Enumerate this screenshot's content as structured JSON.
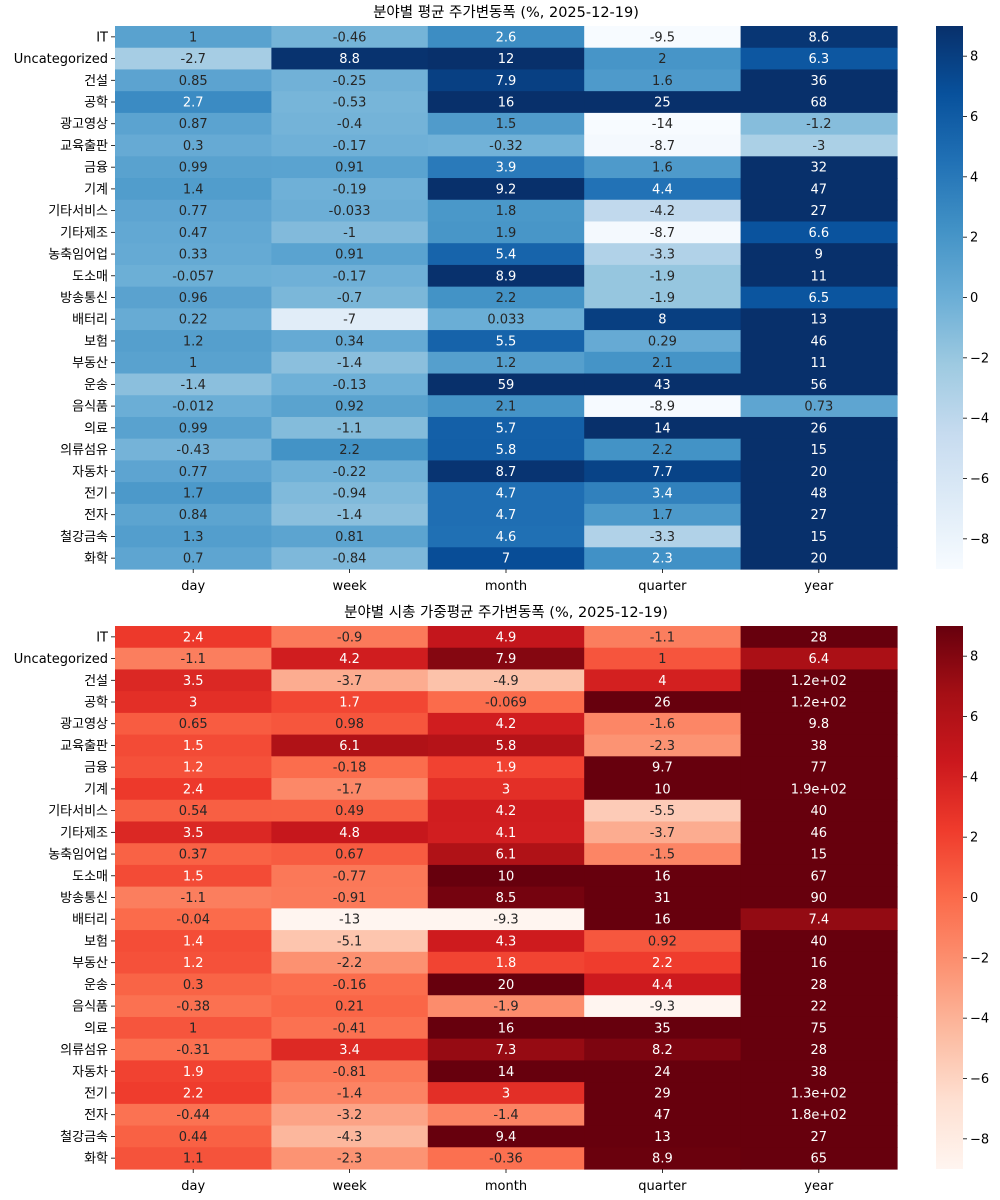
{
  "chart_data": [
    {
      "type": "heatmap",
      "title": "분야별 평균 주가변동폭 (%, 2025-12-19)",
      "colormap": "Blues",
      "vmin": -9,
      "vmax": 9,
      "colorbar_ticks": [
        8,
        6,
        4,
        2,
        0,
        -2,
        -4,
        -6,
        -8
      ],
      "colorbar_tick_labels": [
        "8",
        "6",
        "4",
        "2",
        "0",
        "−2",
        "−4",
        "−6",
        "−8"
      ],
      "columns": [
        "day",
        "week",
        "month",
        "quarter",
        "year"
      ],
      "rows": [
        "IT",
        "Uncategorized",
        "건설",
        "공학",
        "광고영상",
        "교육출판",
        "금융",
        "기계",
        "기타서비스",
        "기타제조",
        "농축임어업",
        "도소매",
        "방송통신",
        "배터리",
        "보험",
        "부동산",
        "운송",
        "음식품",
        "의료",
        "의류섬유",
        "자동차",
        "전기",
        "전자",
        "철강금속",
        "화학"
      ],
      "values": [
        [
          1,
          -0.46,
          2.6,
          -9.5,
          8.6
        ],
        [
          -2.7,
          8.8,
          12,
          2,
          6.3
        ],
        [
          0.85,
          -0.25,
          7.9,
          1.6,
          36
        ],
        [
          2.7,
          -0.53,
          16,
          25,
          68
        ],
        [
          0.87,
          -0.4,
          1.5,
          -14,
          -1.2
        ],
        [
          0.3,
          -0.17,
          -0.32,
          -8.7,
          -3
        ],
        [
          0.99,
          0.91,
          3.9,
          1.6,
          32
        ],
        [
          1.4,
          -0.19,
          9.2,
          4.4,
          47
        ],
        [
          0.77,
          -0.033,
          1.8,
          -4.2,
          27
        ],
        [
          0.47,
          -1,
          1.9,
          -8.7,
          6.6
        ],
        [
          0.33,
          0.91,
          5.4,
          -3.3,
          9
        ],
        [
          -0.057,
          -0.17,
          8.9,
          -1.9,
          11
        ],
        [
          0.96,
          -0.7,
          2.2,
          -1.9,
          6.5
        ],
        [
          0.22,
          -7,
          0.033,
          8,
          13
        ],
        [
          1.2,
          0.34,
          5.5,
          0.29,
          46
        ],
        [
          1,
          -1.4,
          1.2,
          2.1,
          11
        ],
        [
          -1.4,
          -0.13,
          59,
          43,
          56
        ],
        [
          -0.012,
          0.92,
          2.1,
          -8.9,
          0.73
        ],
        [
          0.99,
          -1.1,
          5.7,
          14,
          26
        ],
        [
          -0.43,
          2.2,
          5.8,
          2.2,
          15
        ],
        [
          0.77,
          -0.22,
          8.7,
          7.7,
          20
        ],
        [
          1.7,
          -0.94,
          4.7,
          3.4,
          48
        ],
        [
          0.84,
          -1.4,
          4.7,
          1.7,
          27
        ],
        [
          1.3,
          0.81,
          4.6,
          -3.3,
          15
        ],
        [
          0.7,
          -0.84,
          7,
          2.3,
          20
        ]
      ],
      "labels": [
        [
          "1",
          "-0.46",
          "2.6",
          "-9.5",
          "8.6"
        ],
        [
          "-2.7",
          "8.8",
          "12",
          "2",
          "6.3"
        ],
        [
          "0.85",
          "-0.25",
          "7.9",
          "1.6",
          "36"
        ],
        [
          "2.7",
          "-0.53",
          "16",
          "25",
          "68"
        ],
        [
          "0.87",
          "-0.4",
          "1.5",
          "-14",
          "-1.2"
        ],
        [
          "0.3",
          "-0.17",
          "-0.32",
          "-8.7",
          "-3"
        ],
        [
          "0.99",
          "0.91",
          "3.9",
          "1.6",
          "32"
        ],
        [
          "1.4",
          "-0.19",
          "9.2",
          "4.4",
          "47"
        ],
        [
          "0.77",
          "-0.033",
          "1.8",
          "-4.2",
          "27"
        ],
        [
          "0.47",
          "-1",
          "1.9",
          "-8.7",
          "6.6"
        ],
        [
          "0.33",
          "0.91",
          "5.4",
          "-3.3",
          "9"
        ],
        [
          "-0.057",
          "-0.17",
          "8.9",
          "-1.9",
          "11"
        ],
        [
          "0.96",
          "-0.7",
          "2.2",
          "-1.9",
          "6.5"
        ],
        [
          "0.22",
          "-7",
          "0.033",
          "8",
          "13"
        ],
        [
          "1.2",
          "0.34",
          "5.5",
          "0.29",
          "46"
        ],
        [
          "1",
          "-1.4",
          "1.2",
          "2.1",
          "11"
        ],
        [
          "-1.4",
          "-0.13",
          "59",
          "43",
          "56"
        ],
        [
          "-0.012",
          "0.92",
          "2.1",
          "-8.9",
          "0.73"
        ],
        [
          "0.99",
          "-1.1",
          "5.7",
          "14",
          "26"
        ],
        [
          "-0.43",
          "2.2",
          "5.8",
          "2.2",
          "15"
        ],
        [
          "0.77",
          "-0.22",
          "8.7",
          "7.7",
          "20"
        ],
        [
          "1.7",
          "-0.94",
          "4.7",
          "3.4",
          "48"
        ],
        [
          "0.84",
          "-1.4",
          "4.7",
          "1.7",
          "27"
        ],
        [
          "1.3",
          "0.81",
          "4.6",
          "-3.3",
          "15"
        ],
        [
          "0.7",
          "-0.84",
          "7",
          "2.3",
          "20"
        ]
      ]
    },
    {
      "type": "heatmap",
      "title": "분야별 시총 가중평균 주가변동폭 (%, 2025-12-19)",
      "colormap": "Reds",
      "vmin": -9,
      "vmax": 9,
      "colorbar_ticks": [
        8,
        6,
        4,
        2,
        0,
        -2,
        -4,
        -6,
        -8
      ],
      "colorbar_tick_labels": [
        "8",
        "6",
        "4",
        "2",
        "0",
        "−2",
        "−4",
        "−6",
        "−8"
      ],
      "columns": [
        "day",
        "week",
        "month",
        "quarter",
        "year"
      ],
      "rows": [
        "IT",
        "Uncategorized",
        "건설",
        "공학",
        "광고영상",
        "교육출판",
        "금융",
        "기계",
        "기타서비스",
        "기타제조",
        "농축임어업",
        "도소매",
        "방송통신",
        "배터리",
        "보험",
        "부동산",
        "운송",
        "음식품",
        "의료",
        "의류섬유",
        "자동차",
        "전기",
        "전자",
        "철강금속",
        "화학"
      ],
      "values": [
        [
          2.4,
          -0.9,
          4.9,
          -1.1,
          28
        ],
        [
          -1.1,
          4.2,
          7.9,
          1,
          6.4
        ],
        [
          3.5,
          -3.7,
          -4.9,
          4,
          120
        ],
        [
          3,
          1.7,
          -0.069,
          26,
          120
        ],
        [
          0.65,
          0.98,
          4.2,
          -1.6,
          9.8
        ],
        [
          1.5,
          6.1,
          5.8,
          -2.3,
          38
        ],
        [
          1.2,
          -0.18,
          1.9,
          9.7,
          77
        ],
        [
          2.4,
          -1.7,
          3,
          10,
          190
        ],
        [
          0.54,
          0.49,
          4.2,
          -5.5,
          40
        ],
        [
          3.5,
          4.8,
          4.1,
          -3.7,
          46
        ],
        [
          0.37,
          0.67,
          6.1,
          -1.5,
          15
        ],
        [
          1.5,
          -0.77,
          10,
          16,
          67
        ],
        [
          -1.1,
          -0.91,
          8.5,
          31,
          90
        ],
        [
          -0.04,
          -13,
          -9.3,
          16,
          7.4
        ],
        [
          1.4,
          -5.1,
          4.3,
          0.92,
          40
        ],
        [
          1.2,
          -2.2,
          1.8,
          2.2,
          16
        ],
        [
          0.3,
          -0.16,
          20,
          4.4,
          28
        ],
        [
          -0.38,
          0.21,
          -1.9,
          -9.3,
          22
        ],
        [
          1,
          -0.41,
          16,
          35,
          75
        ],
        [
          -0.31,
          3.4,
          7.3,
          8.2,
          28
        ],
        [
          1.9,
          -0.81,
          14,
          24,
          38
        ],
        [
          2.2,
          -1.4,
          3,
          29,
          130
        ],
        [
          -0.44,
          -3.2,
          -1.4,
          47,
          180
        ],
        [
          0.44,
          -4.3,
          9.4,
          13,
          27
        ],
        [
          1.1,
          -2.3,
          -0.36,
          8.9,
          65
        ]
      ],
      "labels": [
        [
          "2.4",
          "-0.9",
          "4.9",
          "-1.1",
          "28"
        ],
        [
          "-1.1",
          "4.2",
          "7.9",
          "1",
          "6.4"
        ],
        [
          "3.5",
          "-3.7",
          "-4.9",
          "4",
          "1.2e+02"
        ],
        [
          "3",
          "1.7",
          "-0.069",
          "26",
          "1.2e+02"
        ],
        [
          "0.65",
          "0.98",
          "4.2",
          "-1.6",
          "9.8"
        ],
        [
          "1.5",
          "6.1",
          "5.8",
          "-2.3",
          "38"
        ],
        [
          "1.2",
          "-0.18",
          "1.9",
          "9.7",
          "77"
        ],
        [
          "2.4",
          "-1.7",
          "3",
          "10",
          "1.9e+02"
        ],
        [
          "0.54",
          "0.49",
          "4.2",
          "-5.5",
          "40"
        ],
        [
          "3.5",
          "4.8",
          "4.1",
          "-3.7",
          "46"
        ],
        [
          "0.37",
          "0.67",
          "6.1",
          "-1.5",
          "15"
        ],
        [
          "1.5",
          "-0.77",
          "10",
          "16",
          "67"
        ],
        [
          "-1.1",
          "-0.91",
          "8.5",
          "31",
          "90"
        ],
        [
          "-0.04",
          "-13",
          "-9.3",
          "16",
          "7.4"
        ],
        [
          "1.4",
          "-5.1",
          "4.3",
          "0.92",
          "40"
        ],
        [
          "1.2",
          "-2.2",
          "1.8",
          "2.2",
          "16"
        ],
        [
          "0.3",
          "-0.16",
          "20",
          "4.4",
          "28"
        ],
        [
          "-0.38",
          "0.21",
          "-1.9",
          "-9.3",
          "22"
        ],
        [
          "1",
          "-0.41",
          "16",
          "35",
          "75"
        ],
        [
          "-0.31",
          "3.4",
          "7.3",
          "8.2",
          "28"
        ],
        [
          "1.9",
          "-0.81",
          "14",
          "24",
          "38"
        ],
        [
          "2.2",
          "-1.4",
          "3",
          "29",
          "1.3e+02"
        ],
        [
          "-0.44",
          "-3.2",
          "-1.4",
          "47",
          "1.8e+02"
        ],
        [
          "0.44",
          "-4.3",
          "9.4",
          "13",
          "27"
        ],
        [
          "1.1",
          "-2.3",
          "-0.36",
          "8.9",
          "65"
        ]
      ]
    }
  ]
}
